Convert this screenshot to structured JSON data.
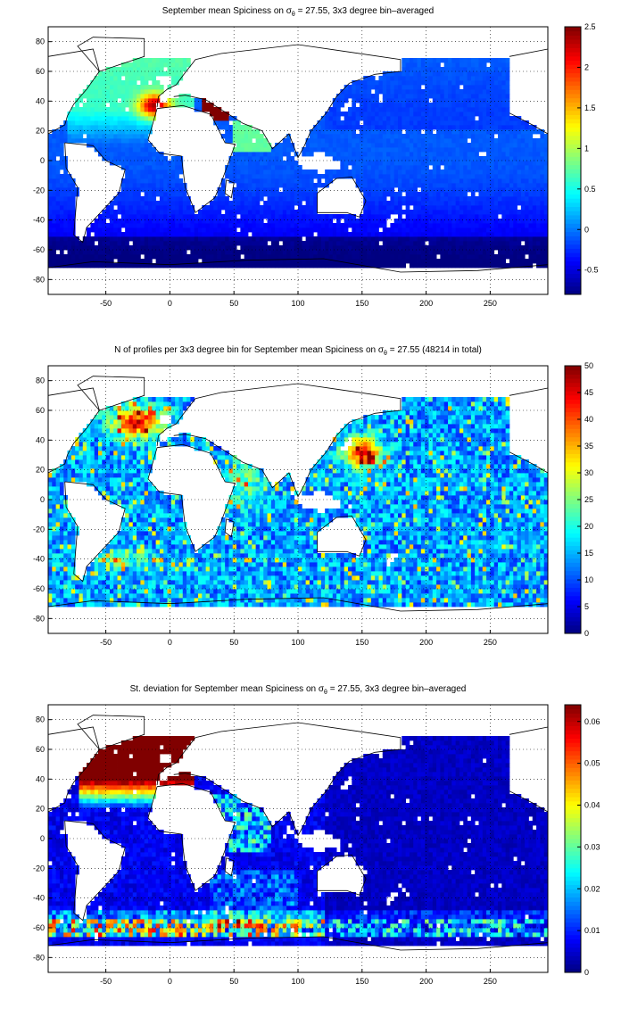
{
  "chart_data": [
    {
      "type": "heatmap",
      "title_prefix": "September mean Spiciness on ",
      "title_sigma": "σ",
      "title_sub": "θ",
      "title_suffix": " = 27.55, 3x3 degree bin–averaged",
      "x_ticks": [
        -50,
        0,
        50,
        100,
        150,
        200,
        250
      ],
      "y_ticks": [
        -80,
        -60,
        -40,
        -20,
        0,
        20,
        40,
        60,
        80
      ],
      "xlim": [
        -95,
        295
      ],
      "ylim": [
        -90,
        90
      ],
      "grid": true,
      "colorbar_ticks": [
        "-0.5",
        "0",
        "0.5",
        "1",
        "1.5",
        "2",
        "2.5"
      ],
      "colorbar_values": [
        -0.5,
        0,
        0.5,
        1,
        1.5,
        2,
        2.5
      ],
      "clim": [
        -0.8,
        2.5
      ]
    },
    {
      "type": "heatmap",
      "title_prefix": "N of profiles per 3x3 degree bin for September mean Spiciness on ",
      "title_sigma": "σ",
      "title_sub": "θ",
      "title_suffix": " = 27.55 (48214 in total)",
      "x_ticks": [
        -50,
        0,
        50,
        100,
        150,
        200,
        250
      ],
      "y_ticks": [
        -80,
        -60,
        -40,
        -20,
        0,
        20,
        40,
        60,
        80
      ],
      "xlim": [
        -95,
        295
      ],
      "ylim": [
        -90,
        90
      ],
      "grid": true,
      "colorbar_ticks": [
        "0",
        "5",
        "10",
        "15",
        "20",
        "25",
        "30",
        "35",
        "40",
        "45",
        "50"
      ],
      "colorbar_values": [
        0,
        5,
        10,
        15,
        20,
        25,
        30,
        35,
        40,
        45,
        50
      ],
      "clim": [
        0,
        50
      ]
    },
    {
      "type": "heatmap",
      "title_prefix": "St. deviation for September mean Spiciness on ",
      "title_sigma": "σ",
      "title_sub": "θ",
      "title_suffix": " = 27.55, 3x3 degree bin–averaged",
      "x_ticks": [
        -50,
        0,
        50,
        100,
        150,
        200,
        250
      ],
      "y_ticks": [
        -80,
        -60,
        -40,
        -20,
        0,
        20,
        40,
        60,
        80
      ],
      "xlim": [
        -95,
        295
      ],
      "ylim": [
        -90,
        90
      ],
      "grid": true,
      "colorbar_ticks": [
        "0",
        "0.01",
        "0.02",
        "0.03",
        "0.04",
        "0.05",
        "0.06"
      ],
      "colorbar_values": [
        0,
        0.01,
        0.02,
        0.03,
        0.04,
        0.05,
        0.06
      ],
      "clim": [
        0,
        0.064
      ]
    }
  ]
}
